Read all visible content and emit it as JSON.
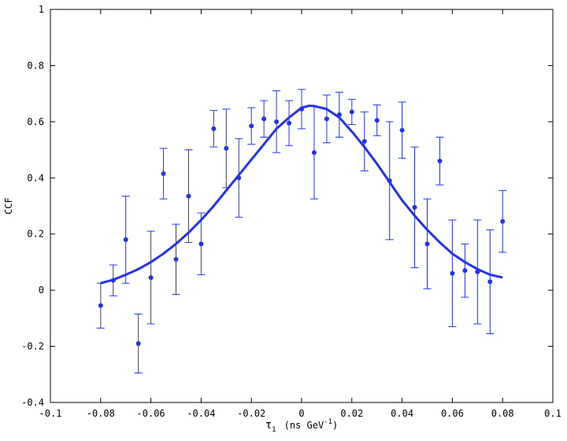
{
  "chart_data": {
    "type": "scatter",
    "xlabel": "τ",
    "xlabel_subscript": "1",
    "xlabel_units": "(ns GeV",
    "xlabel_exponent": "-1",
    "xlabel_close": ")",
    "ylabel": "CCF",
    "xlim": [
      -0.1,
      0.1
    ],
    "ylim": [
      -0.4,
      1.0
    ],
    "x_ticks": [
      -0.1,
      -0.08,
      -0.06,
      -0.04,
      -0.02,
      0,
      0.02,
      0.04,
      0.06,
      0.08,
      0.1
    ],
    "x_tick_labels": [
      "-0.1",
      "-0.08",
      "-0.06",
      "-0.04",
      "-0.02",
      "0",
      "0.02",
      "0.04",
      "0.06",
      "0.08",
      "0.1"
    ],
    "y_ticks": [
      -0.4,
      -0.2,
      0,
      0.2,
      0.4,
      0.6,
      0.8,
      1.0
    ],
    "y_tick_labels": [
      "-0.4",
      "-0.2",
      "0",
      "0.2",
      "0.4",
      "0.6",
      "0.8",
      "1"
    ],
    "grid": false,
    "color": "#2233ee",
    "series": [
      {
        "kind": "points_with_errorbars",
        "x": [
          -0.08,
          -0.075,
          -0.07,
          -0.065,
          -0.06,
          -0.055,
          -0.05,
          -0.045,
          -0.04,
          -0.035,
          -0.03,
          -0.025,
          -0.02,
          -0.015,
          -0.01,
          -0.005,
          0.0,
          0.005,
          0.01,
          0.015,
          0.02,
          0.025,
          0.03,
          0.035,
          0.04,
          0.045,
          0.05,
          0.055,
          0.06,
          0.065,
          0.07,
          0.075,
          0.08
        ],
        "y": [
          -0.055,
          0.035,
          0.18,
          -0.19,
          0.045,
          0.415,
          0.11,
          0.335,
          0.165,
          0.575,
          0.505,
          0.4,
          0.585,
          0.61,
          0.6,
          0.595,
          0.645,
          0.49,
          0.61,
          0.625,
          0.635,
          0.53,
          0.605,
          0.39,
          0.57,
          0.295,
          0.165,
          0.46,
          0.06,
          0.07,
          0.065,
          0.03,
          0.245
        ],
        "err": [
          0.08,
          0.055,
          0.155,
          0.105,
          0.165,
          0.09,
          0.125,
          0.165,
          0.11,
          0.065,
          0.14,
          0.14,
          0.065,
          0.065,
          0.11,
          0.08,
          0.07,
          0.165,
          0.085,
          0.08,
          0.045,
          0.105,
          0.055,
          0.21,
          0.1,
          0.215,
          0.16,
          0.085,
          0.19,
          0.095,
          0.185,
          0.185,
          0.11
        ]
      },
      {
        "kind": "fit_curve",
        "x": [
          -0.08,
          -0.075,
          -0.07,
          -0.065,
          -0.06,
          -0.055,
          -0.05,
          -0.045,
          -0.04,
          -0.035,
          -0.03,
          -0.025,
          -0.02,
          -0.015,
          -0.01,
          -0.005,
          0.0,
          0.003,
          0.005,
          0.01,
          0.015,
          0.02,
          0.025,
          0.03,
          0.035,
          0.04,
          0.045,
          0.05,
          0.055,
          0.06,
          0.065,
          0.07,
          0.075,
          0.08
        ],
        "y": [
          0.025,
          0.037,
          0.055,
          0.075,
          0.1,
          0.13,
          0.165,
          0.205,
          0.25,
          0.3,
          0.355,
          0.41,
          0.465,
          0.52,
          0.575,
          0.615,
          0.65,
          0.657,
          0.656,
          0.645,
          0.615,
          0.565,
          0.51,
          0.45,
          0.385,
          0.32,
          0.265,
          0.215,
          0.17,
          0.13,
          0.1,
          0.075,
          0.055,
          0.045
        ]
      }
    ]
  }
}
